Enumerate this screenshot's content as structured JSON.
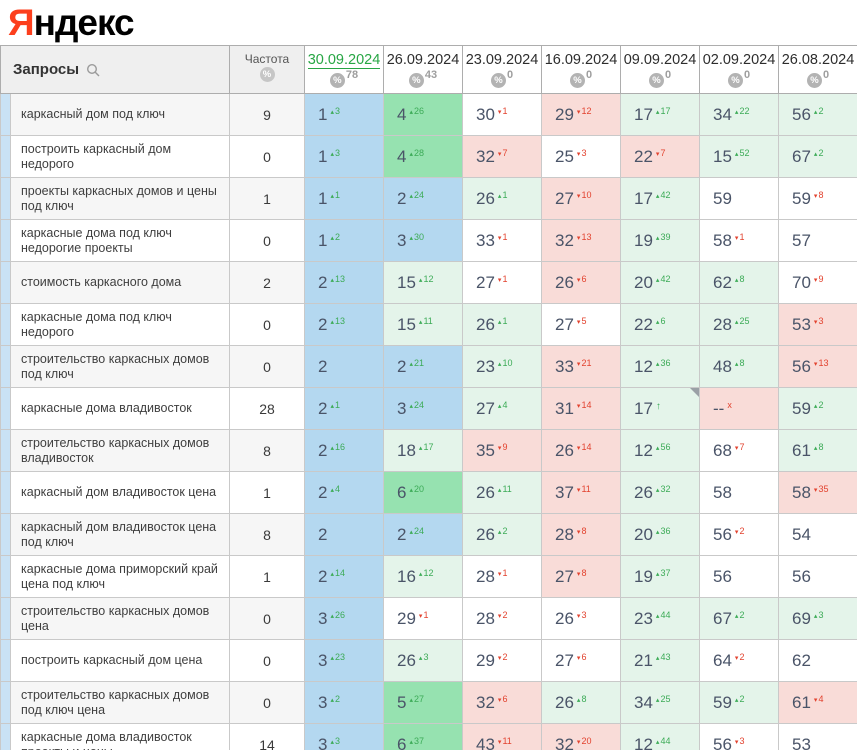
{
  "logo": {
    "first_letter": "Я",
    "rest": "ндекс"
  },
  "header": {
    "queries_label": "Запросы",
    "frequency_label": "Частота",
    "dates": [
      {
        "label": "30.09.2024",
        "percent": "78",
        "selected": true
      },
      {
        "label": "26.09.2024",
        "percent": "43",
        "selected": false
      },
      {
        "label": "23.09.2024",
        "percent": "0",
        "selected": false
      },
      {
        "label": "16.09.2024",
        "percent": "0",
        "selected": false
      },
      {
        "label": "09.09.2024",
        "percent": "0",
        "selected": false
      },
      {
        "label": "02.09.2024",
        "percent": "0",
        "selected": false
      },
      {
        "label": "26.08.2024",
        "percent": "0",
        "selected": false
      }
    ]
  },
  "colors": {
    "top3_blue": "#b4d8f0",
    "improve_strong_green": "#96e2b0",
    "improve_light_green": "#e4f4ea",
    "decline_pink": "#f9dcd8",
    "delta_up_green": "#3cab57",
    "delta_down_red": "#e2422e",
    "selected_date_green": "#27a644",
    "logo_red": "#fc3f1d"
  },
  "rows": [
    {
      "keyword": "каркасный дом под ключ",
      "frequency": "9",
      "cells": [
        {
          "p": "1",
          "d": "-3",
          "bg": "b"
        },
        {
          "p": "4",
          "d": "-26",
          "bg": "g"
        },
        {
          "p": "30",
          "d": "+1",
          "bg": "w"
        },
        {
          "p": "29",
          "d": "+12",
          "bg": "p"
        },
        {
          "p": "17",
          "d": "-17",
          "bg": "lg"
        },
        {
          "p": "34",
          "d": "-22",
          "bg": "lg"
        },
        {
          "p": "56",
          "d": "-2",
          "bg": "lg"
        }
      ]
    },
    {
      "keyword": "построить каркасный дом недорого",
      "frequency": "0",
      "cells": [
        {
          "p": "1",
          "d": "-3",
          "bg": "b"
        },
        {
          "p": "4",
          "d": "-28",
          "bg": "g"
        },
        {
          "p": "32",
          "d": "+7",
          "bg": "p"
        },
        {
          "p": "25",
          "d": "+3",
          "bg": "w"
        },
        {
          "p": "22",
          "d": "+7",
          "bg": "p"
        },
        {
          "p": "15",
          "d": "-52",
          "bg": "lg"
        },
        {
          "p": "67",
          "d": "-2",
          "bg": "lg"
        }
      ]
    },
    {
      "keyword": "проекты каркасных домов и цены под ключ",
      "frequency": "1",
      "cells": [
        {
          "p": "1",
          "d": "-1",
          "bg": "b"
        },
        {
          "p": "2",
          "d": "-24",
          "bg": "b"
        },
        {
          "p": "26",
          "d": "-1",
          "bg": "lg"
        },
        {
          "p": "27",
          "d": "+10",
          "bg": "p"
        },
        {
          "p": "17",
          "d": "-42",
          "bg": "lg"
        },
        {
          "p": "59",
          "d": null,
          "bg": "w"
        },
        {
          "p": "59",
          "d": "+8",
          "bg": "w"
        }
      ]
    },
    {
      "keyword": "каркасные дома под ключ недорогие проекты",
      "frequency": "0",
      "cells": [
        {
          "p": "1",
          "d": "-2",
          "bg": "b"
        },
        {
          "p": "3",
          "d": "-30",
          "bg": "b"
        },
        {
          "p": "33",
          "d": "+1",
          "bg": "w"
        },
        {
          "p": "32",
          "d": "+13",
          "bg": "p"
        },
        {
          "p": "19",
          "d": "-39",
          "bg": "lg"
        },
        {
          "p": "58",
          "d": "+1",
          "bg": "w"
        },
        {
          "p": "57",
          "d": null,
          "bg": "w"
        }
      ]
    },
    {
      "keyword": "стоимость каркасного дома",
      "frequency": "2",
      "cells": [
        {
          "p": "2",
          "d": "-13",
          "bg": "b"
        },
        {
          "p": "15",
          "d": "-12",
          "bg": "lg"
        },
        {
          "p": "27",
          "d": "+1",
          "bg": "w"
        },
        {
          "p": "26",
          "d": "+6",
          "bg": "p"
        },
        {
          "p": "20",
          "d": "-42",
          "bg": "lg"
        },
        {
          "p": "62",
          "d": "-8",
          "bg": "lg"
        },
        {
          "p": "70",
          "d": "+9",
          "bg": "w"
        }
      ]
    },
    {
      "keyword": "каркасные дома под ключ недорого",
      "frequency": "0",
      "cells": [
        {
          "p": "2",
          "d": "-13",
          "bg": "b"
        },
        {
          "p": "15",
          "d": "-11",
          "bg": "lg"
        },
        {
          "p": "26",
          "d": "-1",
          "bg": "lg"
        },
        {
          "p": "27",
          "d": "+5",
          "bg": "w"
        },
        {
          "p": "22",
          "d": "-6",
          "bg": "lg"
        },
        {
          "p": "28",
          "d": "-25",
          "bg": "lg"
        },
        {
          "p": "53",
          "d": "+3",
          "bg": "p"
        }
      ]
    },
    {
      "keyword": "строительство каркасных домов под ключ",
      "frequency": "0",
      "cells": [
        {
          "p": "2",
          "d": null,
          "bg": "b"
        },
        {
          "p": "2",
          "d": "-21",
          "bg": "b"
        },
        {
          "p": "23",
          "d": "-10",
          "bg": "lg"
        },
        {
          "p": "33",
          "d": "+21",
          "bg": "p"
        },
        {
          "p": "12",
          "d": "-36",
          "bg": "lg"
        },
        {
          "p": "48",
          "d": "-8",
          "bg": "lg"
        },
        {
          "p": "56",
          "d": "+13",
          "bg": "p"
        }
      ]
    },
    {
      "keyword": "каркасные дома владивосток",
      "frequency": "28",
      "cells": [
        {
          "p": "2",
          "d": "-1",
          "bg": "b"
        },
        {
          "p": "3",
          "d": "-24",
          "bg": "b"
        },
        {
          "p": "27",
          "d": "-4",
          "bg": "lg"
        },
        {
          "p": "31",
          "d": "+14",
          "bg": "p"
        },
        {
          "p": "17",
          "d": "in",
          "bg": "lg",
          "corner": true
        },
        {
          "p": "--",
          "d": "out",
          "bg": "p"
        },
        {
          "p": "59",
          "d": "-2",
          "bg": "lg"
        }
      ]
    },
    {
      "keyword": "строительство каркасных домов владивосток",
      "frequency": "8",
      "cells": [
        {
          "p": "2",
          "d": "-16",
          "bg": "b"
        },
        {
          "p": "18",
          "d": "-17",
          "bg": "lg"
        },
        {
          "p": "35",
          "d": "+9",
          "bg": "p"
        },
        {
          "p": "26",
          "d": "+14",
          "bg": "p"
        },
        {
          "p": "12",
          "d": "-56",
          "bg": "lg"
        },
        {
          "p": "68",
          "d": "+7",
          "bg": "w"
        },
        {
          "p": "61",
          "d": "-8",
          "bg": "lg"
        }
      ]
    },
    {
      "keyword": "каркасный дом владивосток цена",
      "frequency": "1",
      "cells": [
        {
          "p": "2",
          "d": "-4",
          "bg": "b"
        },
        {
          "p": "6",
          "d": "-20",
          "bg": "g"
        },
        {
          "p": "26",
          "d": "-11",
          "bg": "lg"
        },
        {
          "p": "37",
          "d": "+11",
          "bg": "p"
        },
        {
          "p": "26",
          "d": "-32",
          "bg": "lg"
        },
        {
          "p": "58",
          "d": null,
          "bg": "w"
        },
        {
          "p": "58",
          "d": "+35",
          "bg": "p"
        }
      ]
    },
    {
      "keyword": "каркасный дом владивосток цена под ключ",
      "frequency": "8",
      "cells": [
        {
          "p": "2",
          "d": null,
          "bg": "b"
        },
        {
          "p": "2",
          "d": "-24",
          "bg": "b"
        },
        {
          "p": "26",
          "d": "-2",
          "bg": "lg"
        },
        {
          "p": "28",
          "d": "+8",
          "bg": "p"
        },
        {
          "p": "20",
          "d": "-36",
          "bg": "lg"
        },
        {
          "p": "56",
          "d": "+2",
          "bg": "w"
        },
        {
          "p": "54",
          "d": null,
          "bg": "w"
        }
      ]
    },
    {
      "keyword": "каркасные дома приморский край цена под ключ",
      "frequency": "1",
      "cells": [
        {
          "p": "2",
          "d": "-14",
          "bg": "b"
        },
        {
          "p": "16",
          "d": "-12",
          "bg": "lg"
        },
        {
          "p": "28",
          "d": "+1",
          "bg": "w"
        },
        {
          "p": "27",
          "d": "+8",
          "bg": "p"
        },
        {
          "p": "19",
          "d": "-37",
          "bg": "lg"
        },
        {
          "p": "56",
          "d": null,
          "bg": "w"
        },
        {
          "p": "56",
          "d": null,
          "bg": "w"
        }
      ]
    },
    {
      "keyword": "строительство каркасных домов цена",
      "frequency": "0",
      "cells": [
        {
          "p": "3",
          "d": "-26",
          "bg": "b"
        },
        {
          "p": "29",
          "d": "+1",
          "bg": "w"
        },
        {
          "p": "28",
          "d": "+2",
          "bg": "w"
        },
        {
          "p": "26",
          "d": "+3",
          "bg": "w"
        },
        {
          "p": "23",
          "d": "-44",
          "bg": "lg"
        },
        {
          "p": "67",
          "d": "-2",
          "bg": "lg"
        },
        {
          "p": "69",
          "d": "-3",
          "bg": "lg"
        }
      ]
    },
    {
      "keyword": "построить каркасный дом цена",
      "frequency": "0",
      "cells": [
        {
          "p": "3",
          "d": "-23",
          "bg": "b"
        },
        {
          "p": "26",
          "d": "-3",
          "bg": "lg"
        },
        {
          "p": "29",
          "d": "+2",
          "bg": "w"
        },
        {
          "p": "27",
          "d": "+6",
          "bg": "w"
        },
        {
          "p": "21",
          "d": "-43",
          "bg": "lg"
        },
        {
          "p": "64",
          "d": "+2",
          "bg": "w"
        },
        {
          "p": "62",
          "d": null,
          "bg": "w"
        }
      ]
    },
    {
      "keyword": "строительство каркасных домов под ключ цена",
      "frequency": "0",
      "cells": [
        {
          "p": "3",
          "d": "-2",
          "bg": "b"
        },
        {
          "p": "5",
          "d": "-27",
          "bg": "g"
        },
        {
          "p": "32",
          "d": "+6",
          "bg": "p"
        },
        {
          "p": "26",
          "d": "-8",
          "bg": "lg"
        },
        {
          "p": "34",
          "d": "-25",
          "bg": "lg"
        },
        {
          "p": "59",
          "d": "-2",
          "bg": "lg"
        },
        {
          "p": "61",
          "d": "+4",
          "bg": "p"
        }
      ]
    },
    {
      "keyword": "каркасные дома владивосток проекты и цены",
      "frequency": "14",
      "cells": [
        {
          "p": "3",
          "d": "-3",
          "bg": "b"
        },
        {
          "p": "6",
          "d": "-37",
          "bg": "g"
        },
        {
          "p": "43",
          "d": "+11",
          "bg": "p"
        },
        {
          "p": "32",
          "d": "+20",
          "bg": "p"
        },
        {
          "p": "12",
          "d": "-44",
          "bg": "lg"
        },
        {
          "p": "56",
          "d": "+3",
          "bg": "w"
        },
        {
          "p": "53",
          "d": null,
          "bg": "w"
        }
      ]
    }
  ]
}
